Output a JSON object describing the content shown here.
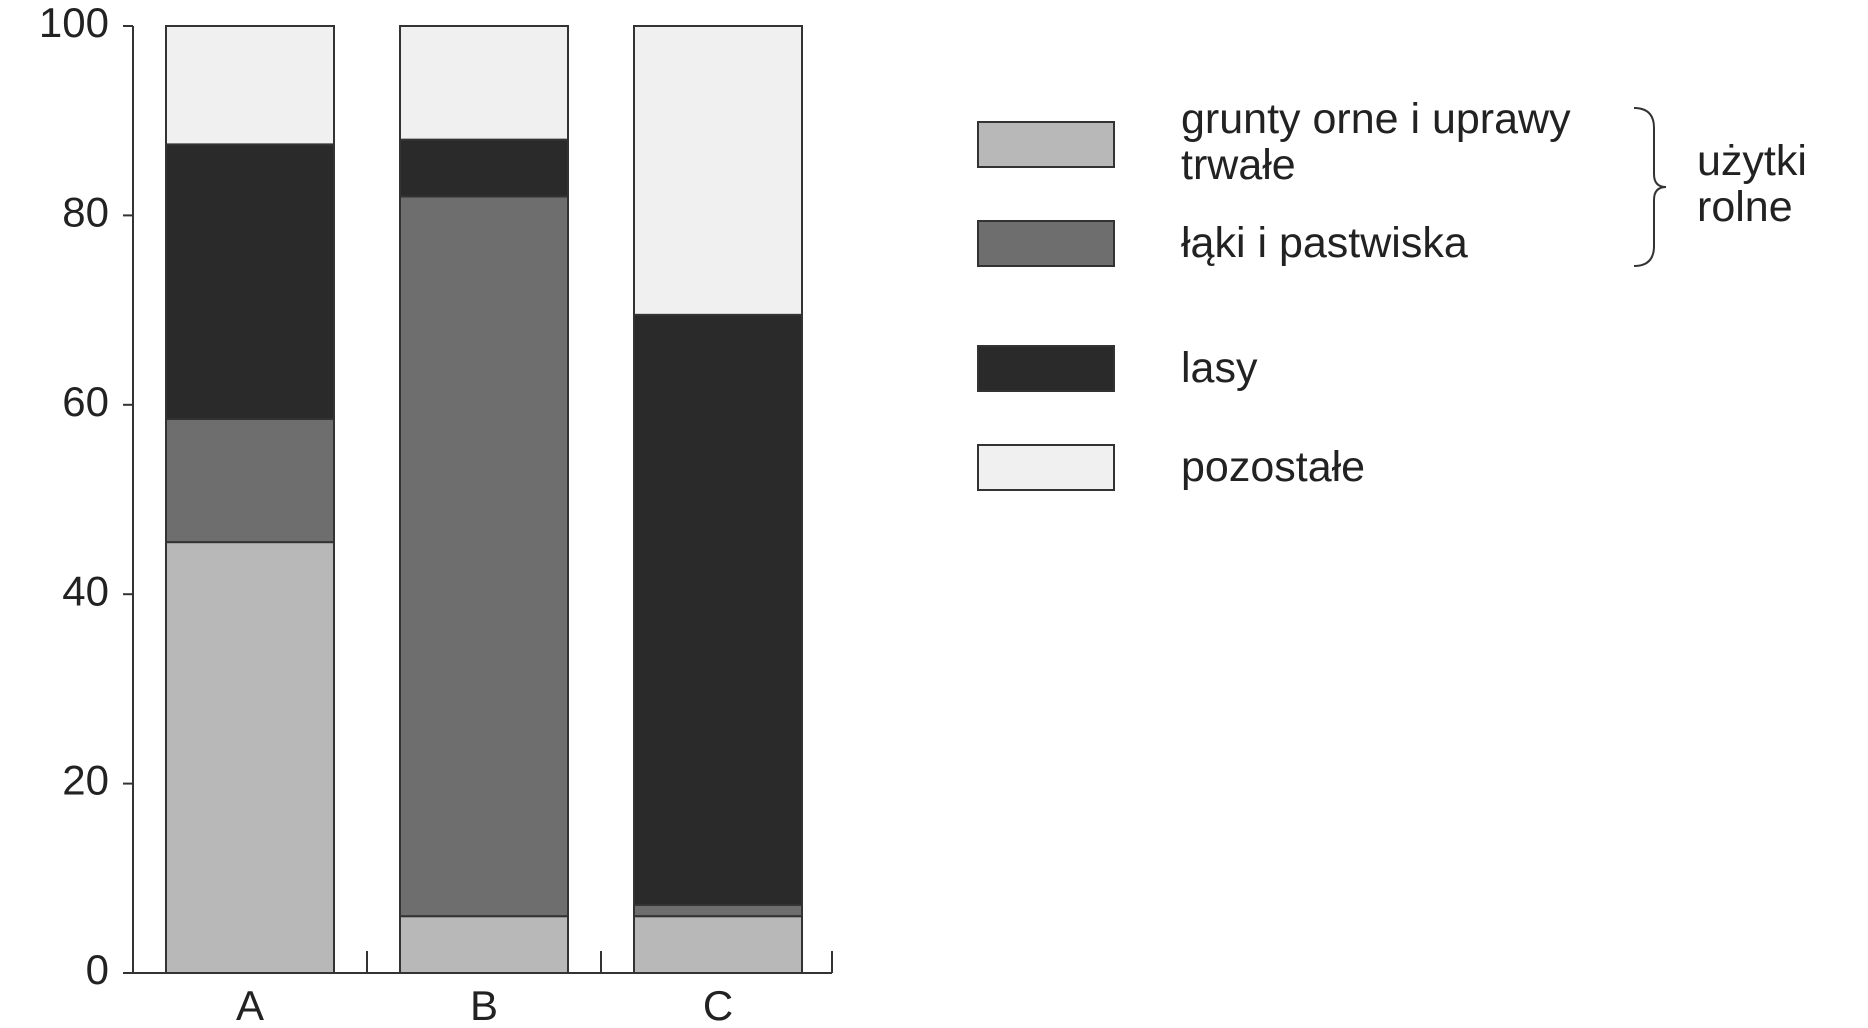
{
  "chart_data": {
    "type": "stacked_bar",
    "categories": [
      "A",
      "B",
      "C"
    ],
    "series": [
      {
        "name": "grunty orne i uprawy trwałe",
        "color": "#b8b8b8",
        "values": [
          45.5,
          6,
          6
        ]
      },
      {
        "name": "łąki i pastwiska",
        "color": "#6e6e6e",
        "values": [
          13,
          76,
          1.2
        ]
      },
      {
        "name": "lasy",
        "color": "#2a2a2a",
        "values": [
          29,
          6,
          62.3
        ]
      },
      {
        "name": "pozostałe",
        "color": "#f0f0f0",
        "values": [
          12.5,
          12,
          30.5
        ]
      }
    ],
    "bracket_label": "użytki rolne",
    "ylim": [
      0,
      100
    ],
    "yticks": [
      0,
      20,
      40,
      60,
      80,
      100
    ]
  }
}
